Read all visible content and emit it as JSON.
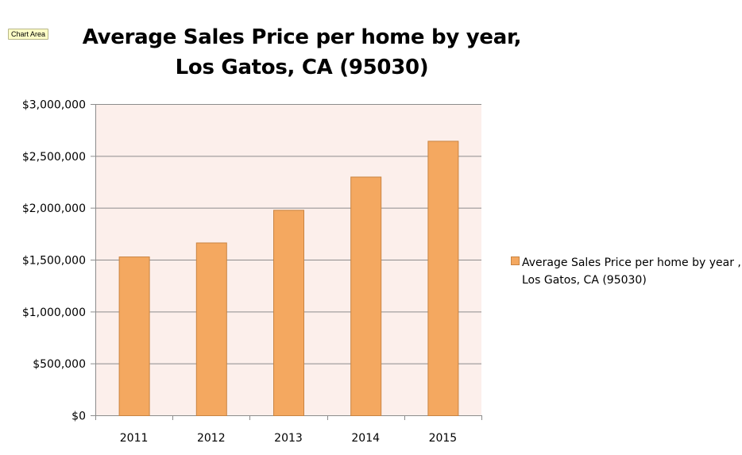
{
  "tooltip": "Chart Area",
  "chart_data": {
    "type": "bar",
    "title_lines": [
      "Average Sales Price per home by year,",
      "Los Gatos, CA (95030)"
    ],
    "categories": [
      "2011",
      "2012",
      "2013",
      "2014",
      "2015"
    ],
    "series": [
      {
        "name": "Average Sales Price per home by year , Los Gatos, CA (95030)",
        "values": [
          1530000,
          1665000,
          1980000,
          2300000,
          2645000
        ]
      }
    ],
    "ylim": [
      0,
      3000000
    ],
    "yticks": [
      0,
      500000,
      1000000,
      1500000,
      2000000,
      2500000,
      3000000
    ],
    "ytick_labels": [
      "$0",
      "$500,000",
      "$1,000,000",
      "$1,500,000",
      "$2,000,000",
      "$2,500,000",
      "$3,000,000"
    ],
    "grid": true,
    "legend_position": "right",
    "colors": {
      "plot_background": "#fcefeb",
      "bar_fill": "#f4a860",
      "bar_stroke": "#c98442",
      "gridline": "#8c8c8c"
    }
  }
}
